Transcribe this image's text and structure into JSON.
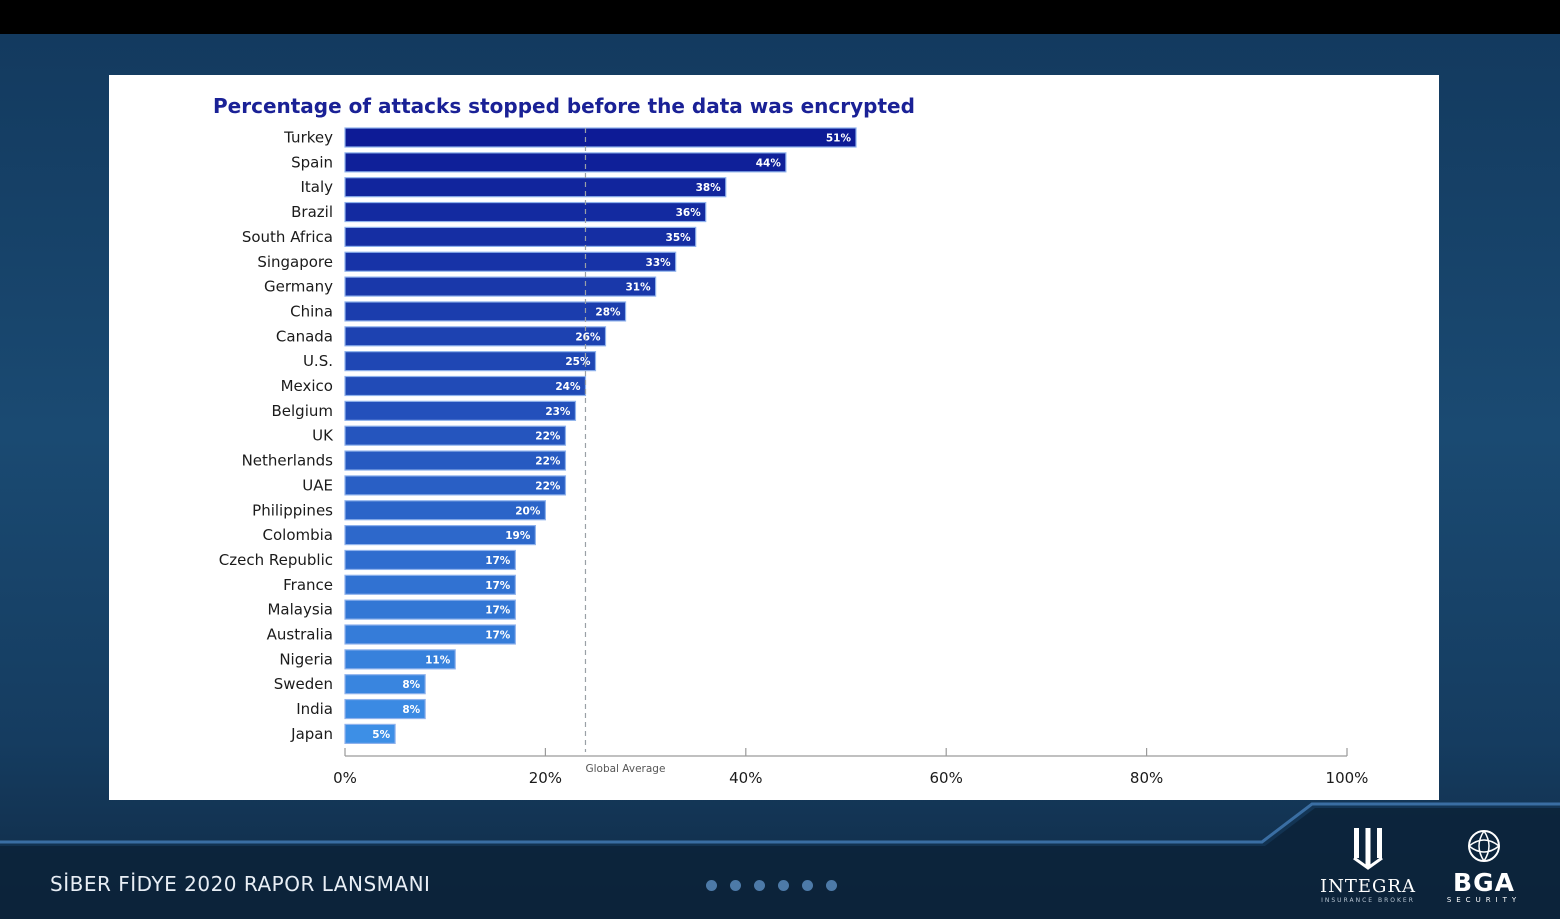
{
  "chart_data": {
    "type": "bar",
    "orientation": "horizontal",
    "title": "Percentage of attacks stopped before the data was encrypted",
    "categories": [
      "Turkey",
      "Spain",
      "Italy",
      "Brazil",
      "South Africa",
      "Singapore",
      "Germany",
      "China",
      "Canada",
      "U.S.",
      "Mexico",
      "Belgium",
      "UK",
      "Netherlands",
      "UAE",
      "Philippines",
      "Colombia",
      "Czech Republic",
      "France",
      "Malaysia",
      "Australia",
      "Nigeria",
      "Sweden",
      "India",
      "Japan"
    ],
    "values": [
      51,
      44,
      38,
      36,
      35,
      33,
      31,
      28,
      26,
      25,
      24,
      23,
      22,
      22,
      22,
      20,
      19,
      17,
      17,
      17,
      17,
      11,
      8,
      8,
      5
    ],
    "value_labels": [
      "51%",
      "44%",
      "38%",
      "36%",
      "35%",
      "33%",
      "31%",
      "28%",
      "26%",
      "25%",
      "24%",
      "23%",
      "22%",
      "22%",
      "22%",
      "20%",
      "19%",
      "17%",
      "17%",
      "17%",
      "17%",
      "11%",
      "8%",
      "8%",
      "5%"
    ],
    "xlim": [
      0,
      100
    ],
    "x_ticks": [
      0,
      20,
      40,
      60,
      80,
      100
    ],
    "x_tick_labels": [
      "0%",
      "20%",
      "40%",
      "60%",
      "80%",
      "100%"
    ],
    "reference_line": {
      "value": 24,
      "label": "Global Average"
    },
    "colors": {
      "title": "#1a2196",
      "bar_dark": "#0d1b96",
      "bar_light": "#3d8fe6",
      "bar_border": "#8fb2ec",
      "reference_line": "#9aa0a6"
    }
  },
  "footer": {
    "title": "SİBER FİDYE 2020 RAPOR LANSMANI",
    "dots": 6,
    "logos": [
      {
        "icon": "integra-logo-icon",
        "name": "INTEGRA",
        "sub": "INSURANCE BROKER"
      },
      {
        "icon": "bga-logo-icon",
        "name": "BGA",
        "sub": "SECURITY"
      }
    ]
  }
}
